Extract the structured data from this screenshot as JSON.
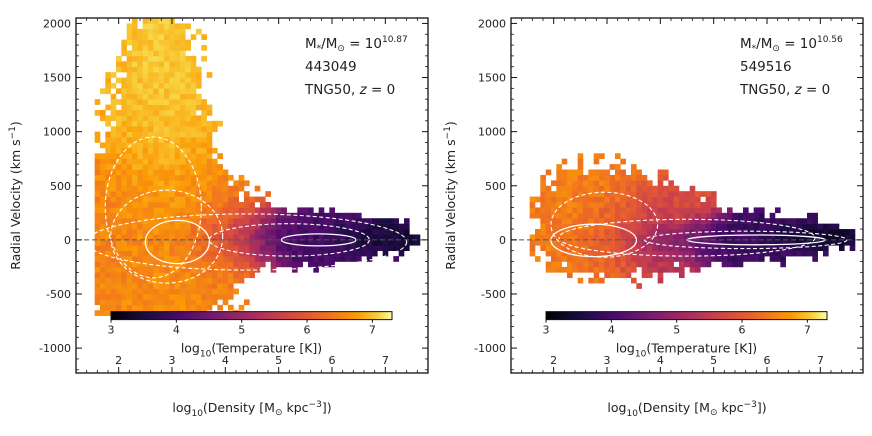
{
  "chart_data": [
    {
      "type": "heatmap",
      "id": "left",
      "annotation": {
        "mass_prefix": "M",
        "mass_sub": "*",
        "mass_sep": "/M",
        "mass_sun": "⊙",
        "mass_eq": " = 10",
        "mass_exp": "10.87",
        "subhalo_id": "443049",
        "sim_name": "TNG50, ",
        "sim_z": "z",
        "sim_zval": " = 0"
      },
      "xlabel": "log10(Density [M⊙ kpc−3])",
      "xlabel_parts": [
        "log",
        "10",
        "(Density [M",
        "⊙",
        " kpc",
        "−3",
        "])"
      ],
      "ylabel": "Radial Velocity (km s−1)",
      "ylabel_parts": [
        "Radial Velocity (km s",
        "−1",
        ")"
      ],
      "xlim": [
        1.2,
        7.8
      ],
      "ylim": [
        -1230,
        2050
      ],
      "x_ticks": [
        2,
        3,
        4,
        5,
        6,
        7
      ],
      "x_tick_labels": [
        "2",
        "3",
        "4",
        "5",
        "6",
        "7"
      ],
      "y_ticks": [
        -1000,
        -500,
        0,
        500,
        1000,
        1500,
        2000
      ],
      "y_tick_labels": [
        "-1000",
        "-500",
        "0",
        "500",
        "1000",
        "1500",
        "2000"
      ],
      "zero_line": 0,
      "colorbar": {
        "range": [
          3,
          7.3
        ],
        "ticks": [
          3,
          4,
          5,
          6,
          7
        ],
        "tick_labels": [
          "3",
          "4",
          "5",
          "6",
          "7"
        ],
        "label_parts": [
          "log",
          "10",
          "(Temperature [K])"
        ],
        "colormap": "inferno"
      },
      "blobs": [
        {
          "x": 2.6,
          "y": 0,
          "sx": 0.75,
          "sy": 380,
          "w": 1.0,
          "t": 6.1
        },
        {
          "x": 2.7,
          "y": 650,
          "sx": 0.45,
          "sy": 650,
          "w": 0.55,
          "t": 6.6
        },
        {
          "x": 2.75,
          "y": 1450,
          "sx": 0.3,
          "sy": 400,
          "w": 0.2,
          "t": 6.9
        },
        {
          "x": 4.0,
          "y": 20,
          "sx": 0.5,
          "sy": 150,
          "w": 0.6,
          "t": 5.6
        },
        {
          "x": 5.5,
          "y": 0,
          "sx": 0.75,
          "sy": 110,
          "w": 0.75,
          "t": 3.9
        },
        {
          "x": 6.6,
          "y": 0,
          "sx": 0.45,
          "sy": 70,
          "w": 0.5,
          "t": 3.3
        }
      ],
      "contours": [
        {
          "cx": 3.1,
          "cy": -20,
          "rx": 0.6,
          "ry": 200,
          "style": "solid"
        },
        {
          "cx": 5.75,
          "cy": 0,
          "rx": 0.7,
          "ry": 55,
          "style": "solid"
        },
        {
          "cx": 2.9,
          "cy": 30,
          "rx": 1.05,
          "ry": 430,
          "style": "dashed"
        },
        {
          "cx": 2.65,
          "cy": 300,
          "rx": 0.9,
          "ry": 650,
          "style": "dashed"
        },
        {
          "cx": 5.2,
          "cy": 0,
          "rx": 1.5,
          "ry": 150,
          "style": "dashed"
        },
        {
          "cx": 4.4,
          "cy": -20,
          "rx": 3.0,
          "ry": 260,
          "style": "dashed"
        }
      ]
    },
    {
      "type": "heatmap",
      "id": "right",
      "annotation": {
        "mass_prefix": "M",
        "mass_sub": "*",
        "mass_sep": "/M",
        "mass_sun": "⊙",
        "mass_eq": " = 10",
        "mass_exp": "10.56",
        "subhalo_id": "549516",
        "sim_name": "TNG50, ",
        "sim_z": "z",
        "sim_zval": " = 0"
      },
      "xlabel": "log10(Density [M⊙ kpc−3])",
      "xlabel_parts": [
        "log",
        "10",
        "(Density [M",
        "⊙",
        " kpc",
        "−3",
        "])"
      ],
      "ylabel": "Radial Velocity (km s−1)",
      "ylabel_parts": [
        "Radial Velocity (km s",
        "−1",
        ")"
      ],
      "xlim": [
        1.2,
        7.8
      ],
      "ylim": [
        -1230,
        2050
      ],
      "x_ticks": [
        2,
        3,
        4,
        5,
        6,
        7
      ],
      "x_tick_labels": [
        "2",
        "3",
        "4",
        "5",
        "6",
        "7"
      ],
      "y_ticks": [
        -1000,
        -500,
        0,
        500,
        1000,
        1500,
        2000
      ],
      "y_tick_labels": [
        "-1000",
        "-500",
        "0",
        "500",
        "1000",
        "1500",
        "2000"
      ],
      "zero_line": 0,
      "colorbar": {
        "range": [
          3,
          7.3
        ],
        "ticks": [
          3,
          4,
          5,
          6,
          7
        ],
        "tick_labels": [
          "3",
          "4",
          "5",
          "6",
          "7"
        ],
        "label_parts": [
          "log",
          "10",
          "(Temperature [K])"
        ],
        "colormap": "inferno"
      },
      "blobs": [
        {
          "x": 2.8,
          "y": 150,
          "sx": 0.55,
          "sy": 220,
          "w": 0.8,
          "t": 6.1
        },
        {
          "x": 3.6,
          "y": 80,
          "sx": 0.6,
          "sy": 180,
          "w": 0.55,
          "t": 5.0
        },
        {
          "x": 4.3,
          "y": 120,
          "sx": 0.4,
          "sy": 170,
          "w": 0.3,
          "t": 5.8
        },
        {
          "x": 5.2,
          "y": 0,
          "sx": 0.9,
          "sy": 100,
          "w": 0.8,
          "t": 3.8
        },
        {
          "x": 6.6,
          "y": 0,
          "sx": 0.5,
          "sy": 50,
          "w": 0.55,
          "t": 3.2
        }
      ],
      "contours": [
        {
          "cx": 2.75,
          "cy": -5,
          "rx": 0.8,
          "ry": 150,
          "style": "solid"
        },
        {
          "cx": 5.8,
          "cy": 0,
          "rx": 1.3,
          "ry": 45,
          "style": "solid"
        },
        {
          "cx": 2.95,
          "cy": 140,
          "rx": 1.0,
          "ry": 300,
          "style": "dashed"
        },
        {
          "cx": 4.5,
          "cy": 20,
          "rx": 2.4,
          "ry": 170,
          "style": "dashed"
        },
        {
          "cx": 5.6,
          "cy": 0,
          "rx": 1.9,
          "ry": 80,
          "style": "dashed"
        }
      ]
    }
  ]
}
